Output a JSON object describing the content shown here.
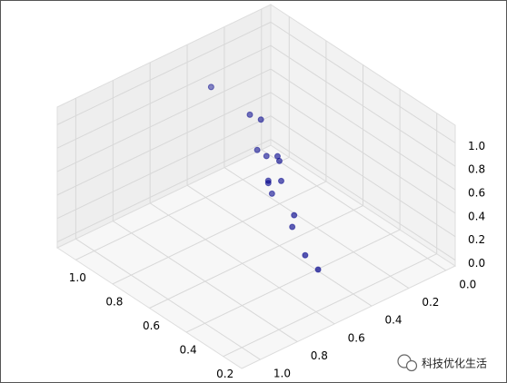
{
  "chart_data": {
    "type": "scatter3d",
    "x": [
      0.91,
      0.7,
      0.64,
      0.66,
      0.61,
      0.55,
      0.54,
      0.6,
      0.6,
      0.53,
      0.58,
      0.46,
      0.47,
      0.4,
      0.33
    ],
    "y": [
      0.46,
      0.46,
      0.46,
      0.46,
      0.46,
      0.46,
      0.46,
      0.46,
      0.46,
      0.46,
      0.46,
      0.46,
      0.46,
      0.46,
      0.46
    ],
    "z": [
      1.03,
      1.01,
      1.03,
      0.75,
      0.75,
      0.81,
      0.78,
      0.55,
      0.53,
      0.62,
      0.46,
      0.4,
      0.29,
      0.12,
      0.07
    ],
    "color": "#00008b",
    "xlim": [
      0.1,
      1.1
    ],
    "ylim": [
      -0.05,
      1.1
    ],
    "zlim": [
      -0.05,
      1.15
    ],
    "xticks": [
      0.2,
      0.4,
      0.6,
      0.8,
      {
        "value": 1,
        "label": "1.0"
      }
    ],
    "yticks": [
      {
        "value": 0,
        "label": "0.0"
      },
      0.2,
      0.4,
      0.6,
      0.8,
      {
        "value": 1,
        "label": "1.0"
      }
    ],
    "zticks": [
      {
        "value": 0,
        "label": "0.0"
      },
      0.2,
      0.4,
      0.6,
      0.8,
      {
        "value": 1,
        "label": "1.0"
      }
    ],
    "grid": true
  },
  "watermark": "科技优化生活"
}
